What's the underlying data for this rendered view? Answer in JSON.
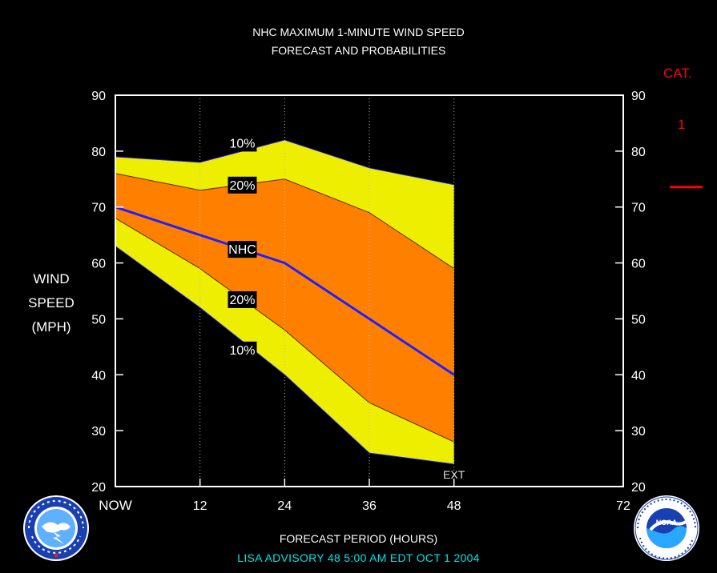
{
  "header": {
    "title_line1": "NHC MAXIMUM 1-MINUTE WIND SPEED",
    "title_line2": "FORECAST AND PROBABILITIES"
  },
  "category": {
    "title": "CAT.",
    "value": "1"
  },
  "axis": {
    "ylabel_line1": "WIND",
    "ylabel_line2": "SPEED",
    "ylabel_line3": "(MPH)",
    "xlabel": "FORECAST PERIOD (HOURS)"
  },
  "footer": {
    "advisory": "LISA    ADVISORY  48  5:00  AM  EDT  OCT  1  2004"
  },
  "colors": {
    "background": "#000000",
    "outer_band": "#eeee00",
    "inner_band": "#ff8000",
    "forecast_line": "#2020ff",
    "category_marker": "#ff0000",
    "advisory_text": "#00e5e5"
  },
  "chart_data": {
    "type": "area",
    "x": [
      0,
      12,
      24,
      36,
      48
    ],
    "x_ticks": [
      0,
      12,
      24,
      36,
      48,
      72
    ],
    "x_tick_labels": [
      "NOW",
      "12",
      "24",
      "36",
      "48",
      "72"
    ],
    "y_ticks": [
      20,
      30,
      40,
      50,
      60,
      70,
      80,
      90
    ],
    "xlim": [
      0,
      72
    ],
    "ylim": [
      20,
      90
    ],
    "xlabel": "FORECAST PERIOD (HOURS)",
    "ylabel": "WIND SPEED (MPH)",
    "grid": "vertical dotted at 12, 24, 36, 48",
    "series": [
      {
        "name": "10%",
        "role": "upper",
        "values": [
          79,
          78,
          82,
          77,
          74
        ]
      },
      {
        "name": "20%",
        "role": "upper",
        "values": [
          76,
          73,
          75,
          69,
          59
        ]
      },
      {
        "name": "NHC",
        "role": "forecast",
        "values": [
          70,
          65,
          60,
          50,
          40
        ]
      },
      {
        "name": "20%",
        "role": "lower",
        "values": [
          68,
          59,
          48,
          35,
          28
        ]
      },
      {
        "name": "10%",
        "role": "lower",
        "values": [
          63,
          52,
          40,
          26,
          24
        ]
      }
    ],
    "curve_labels": [
      "10%",
      "20%",
      "NHC",
      "20%",
      "10%"
    ],
    "annotation": "EXT",
    "category_marker_value": 74
  }
}
